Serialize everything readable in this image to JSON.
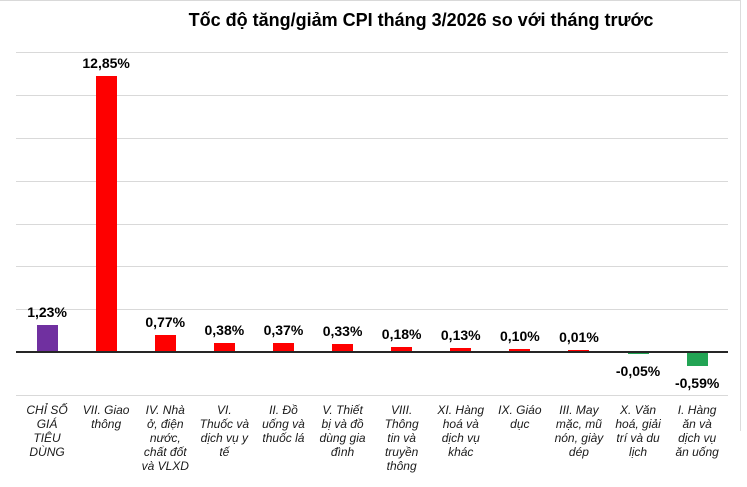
{
  "chart_data": {
    "type": "bar",
    "title": "Tốc độ tăng/giảm CPI tháng 3/2026 so với tháng trước",
    "ylabel": "",
    "xlabel": "",
    "ylim": [
      -2,
      14
    ],
    "gridline_step": 2,
    "grid": "horizontal",
    "legend": "none",
    "value_label_decimal_style": "comma",
    "categories": [
      {
        "label": "CHỈ SỐ GIÁ TIÊU DÙNG",
        "wrapped": "CHỈ SỐ\nGIÁ\nTIÊU\nDÙNG"
      },
      {
        "label": "VII. Giao thông",
        "wrapped": "VII. Giao\nthông"
      },
      {
        "label": "IV. Nhà ở, điện nước, chất đốt và VLXD",
        "wrapped": "IV. Nhà\nở, điện\nnước,\nchất đốt\nvà VLXD"
      },
      {
        "label": "VI. Thuốc và dịch vụ y tế",
        "wrapped": "VI.\nThuốc và\ndịch vụ y\ntế"
      },
      {
        "label": "II. Đồ uống và thuốc lá",
        "wrapped": "II. Đồ\nuống và\nthuốc lá"
      },
      {
        "label": "V. Thiết bị và đồ dùng gia đình",
        "wrapped": "V. Thiết\nbị và đồ\ndùng gia\nđình"
      },
      {
        "label": "VIII. Thông tin và truyền thông",
        "wrapped": "VIII.\nThông\ntin và\ntruyền\nthông"
      },
      {
        "label": "XI. Hàng hoá và dịch vụ khác",
        "wrapped": "XI. Hàng\nhoá và\ndịch vụ\nkhác"
      },
      {
        "label": "IX. Giáo dục",
        "wrapped": "IX. Giáo\ndục"
      },
      {
        "label": "III. May mặc, mũ nón, giày dép",
        "wrapped": "III. May\nmặc, mũ\nnón, giày\ndép"
      },
      {
        "label": "X. Văn hoá, giải trí và du lịch",
        "wrapped": "X. Văn\nhoá, giải\ntrí và du\nlịch"
      },
      {
        "label": "I. Hàng ăn và dịch vụ ăn uống",
        "wrapped": "I. Hàng\năn và\ndịch vụ\năn uống"
      }
    ],
    "values": [
      1.23,
      12.85,
      0.77,
      0.38,
      0.37,
      0.33,
      0.18,
      0.13,
      0.1,
      0.01,
      -0.05,
      -0.59
    ],
    "value_labels": [
      "1,23%",
      "12,85%",
      "0,77%",
      "0,38%",
      "0,37%",
      "0,33%",
      "0,18%",
      "0,13%",
      "0,10%",
      "0,01%",
      "-0,05%",
      "-0,59%"
    ],
    "bar_colors": [
      "#7030a0",
      "#fe0000",
      "#fe0000",
      "#fe0000",
      "#fe0000",
      "#fe0000",
      "#fe0000",
      "#fe0000",
      "#fe0000",
      "#fe0000",
      "#22a454",
      "#22a454"
    ],
    "colors": {
      "cpi_index_bar": "#7030a0",
      "positive_bar": "#fe0000",
      "negative_bar": "#22a454",
      "gridline": "#d9d9d9",
      "axis_line": "#262626",
      "title_text": "#000000"
    }
  }
}
